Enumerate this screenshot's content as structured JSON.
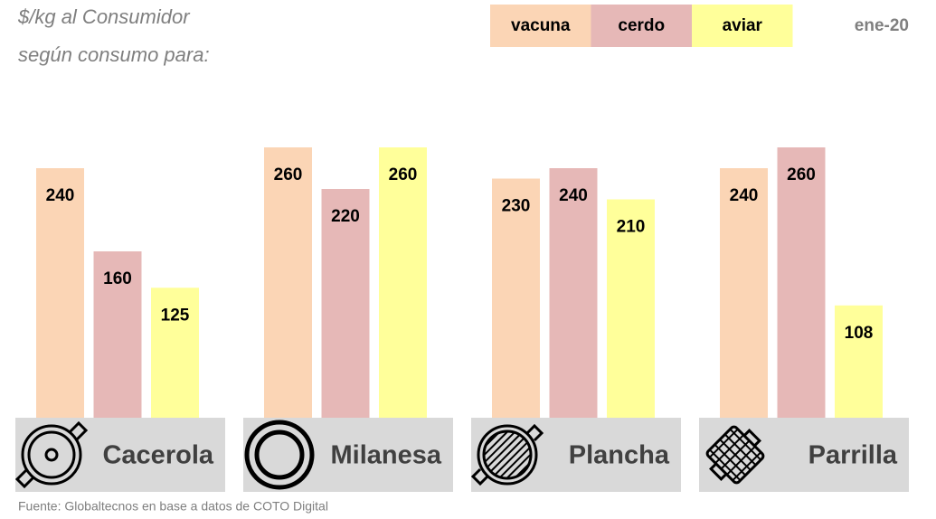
{
  "chart_data": {
    "type": "bar",
    "title": [
      "$/kg al Consumidor",
      "según consumo para:"
    ],
    "date": "ene-20",
    "source": "Fuente: Globaltecnos en base a datos de COTO Digital",
    "categories": [
      "Cacerola",
      "Milanesa",
      "Plancha",
      "Parrilla"
    ],
    "series": [
      {
        "name": "vacuna",
        "color": "#fbd5b5",
        "values": [
          240,
          260,
          230,
          240
        ]
      },
      {
        "name": "cerdo",
        "color": "#e6b8b7",
        "values": [
          160,
          220,
          240,
          260
        ]
      },
      {
        "name": "aviar",
        "color": "#ffff9a",
        "values": [
          125,
          260,
          210,
          108
        ]
      }
    ],
    "ylim": [
      0,
      260
    ]
  }
}
